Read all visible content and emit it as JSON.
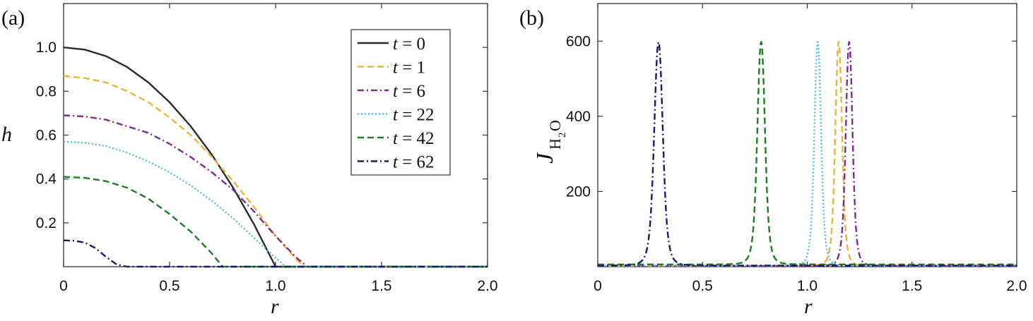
{
  "colors": {
    "t0": "#2b2b2b",
    "t1": "#e8b63a",
    "t6": "#7b2d8e",
    "t22": "#56b9e3",
    "t42": "#1e7d23",
    "t62": "#141c68"
  },
  "chart_data": [
    {
      "type": "line",
      "panel_label": "(a)",
      "xlabel": "r",
      "ylabel": "h",
      "xlim": [
        0,
        2.0
      ],
      "ylim": [
        0,
        1.2
      ],
      "x_ticks": [
        "0",
        "0.5",
        "1.0",
        "1.5",
        "2.0"
      ],
      "y_ticks": [
        "0.2",
        "0.4",
        "0.6",
        "0.8",
        "1.0"
      ],
      "grid": false,
      "legend_position": "top-right",
      "series": [
        {
          "name": "t = 0",
          "t": "0",
          "style": "solid",
          "color": "#2b2b2b",
          "x": [
            0,
            0.1,
            0.2,
            0.3,
            0.4,
            0.5,
            0.6,
            0.7,
            0.8,
            0.9,
            1.0,
            2.0
          ],
          "y": [
            1.0,
            0.99,
            0.96,
            0.91,
            0.84,
            0.75,
            0.64,
            0.51,
            0.36,
            0.19,
            0.0,
            0.0
          ]
        },
        {
          "name": "t = 1",
          "t": "1",
          "style": "dashed",
          "color": "#e8b63a",
          "x": [
            0,
            0.1,
            0.2,
            0.3,
            0.4,
            0.5,
            0.6,
            0.7,
            0.8,
            0.9,
            1.0,
            1.1,
            1.14,
            2.0
          ],
          "y": [
            0.87,
            0.86,
            0.84,
            0.8,
            0.75,
            0.68,
            0.6,
            0.5,
            0.39,
            0.27,
            0.14,
            0.03,
            0.0,
            0.0
          ]
        },
        {
          "name": "t = 6",
          "t": "6",
          "style": "dashdot",
          "color": "#7b2d8e",
          "x": [
            0,
            0.1,
            0.2,
            0.3,
            0.4,
            0.5,
            0.6,
            0.7,
            0.8,
            0.9,
            1.0,
            1.1,
            1.15,
            2.0
          ],
          "y": [
            0.69,
            0.685,
            0.67,
            0.64,
            0.61,
            0.56,
            0.5,
            0.43,
            0.35,
            0.25,
            0.14,
            0.04,
            0.0,
            0.0
          ]
        },
        {
          "name": "t = 22",
          "t": "22",
          "style": "dotted",
          "color": "#56b9e3",
          "x": [
            0,
            0.1,
            0.2,
            0.3,
            0.4,
            0.5,
            0.6,
            0.7,
            0.8,
            0.9,
            1.0,
            1.05,
            2.0
          ],
          "y": [
            0.57,
            0.565,
            0.55,
            0.52,
            0.48,
            0.43,
            0.37,
            0.3,
            0.22,
            0.13,
            0.04,
            0.0,
            0.0
          ]
        },
        {
          "name": "t = 42",
          "t": "42",
          "style": "dashed",
          "color": "#1e7d23",
          "x": [
            0,
            0.1,
            0.2,
            0.3,
            0.4,
            0.5,
            0.6,
            0.7,
            0.75,
            2.0
          ],
          "y": [
            0.41,
            0.405,
            0.39,
            0.36,
            0.31,
            0.24,
            0.16,
            0.06,
            0.0,
            0.0
          ]
        },
        {
          "name": "t = 62",
          "t": "62",
          "style": "dashdot",
          "color": "#141c68",
          "x": [
            0,
            0.05,
            0.1,
            0.15,
            0.2,
            0.25,
            0.3,
            2.0
          ],
          "y": [
            0.12,
            0.118,
            0.11,
            0.085,
            0.045,
            0.01,
            0.0,
            0.0
          ]
        }
      ]
    },
    {
      "type": "line",
      "panel_label": "(b)",
      "xlabel": "r",
      "ylabel": "J",
      "ylabel_subscript": "H2O",
      "ylabel_sub_prefix": "H",
      "ylabel_sub_digit": "2",
      "ylabel_sub_suffix": "O",
      "xlim": [
        0,
        2.0
      ],
      "ylim": [
        0,
        700
      ],
      "x_ticks": [
        "0",
        "0.5",
        "1.0",
        "1.5",
        "2.0"
      ],
      "y_ticks": [
        "200",
        "400",
        "600"
      ],
      "grid": false,
      "peaks": [
        {
          "t": "1",
          "center": 1.15,
          "peak": 598,
          "width": 0.022,
          "base": 2,
          "style": "dashed",
          "color": "#e8b63a"
        },
        {
          "t": "6",
          "center": 1.2,
          "peak": 598,
          "width": 0.022,
          "base": 2,
          "style": "dashdot",
          "color": "#7b2d8e"
        },
        {
          "t": "22",
          "center": 1.05,
          "peak": 598,
          "width": 0.022,
          "base": 3,
          "style": "dotted",
          "color": "#56b9e3"
        },
        {
          "t": "42",
          "center": 0.78,
          "peak": 598,
          "width": 0.025,
          "base": 6,
          "style": "dashed",
          "color": "#1e7d23"
        },
        {
          "t": "62",
          "center": 0.29,
          "peak": 598,
          "width": 0.028,
          "base": 3,
          "style": "dashdot",
          "color": "#141c68"
        }
      ]
    }
  ]
}
